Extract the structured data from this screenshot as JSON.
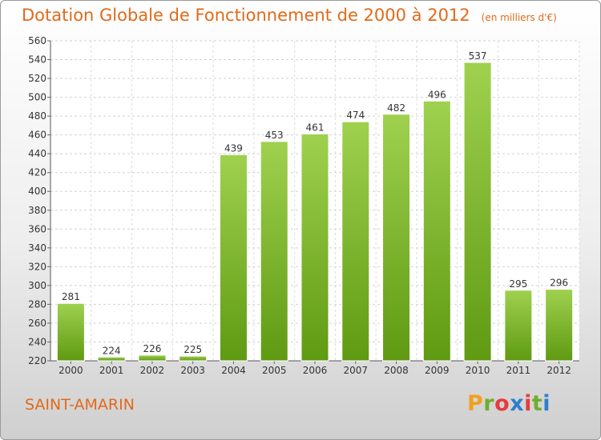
{
  "title": "Dotation Globale de Fonctionnement de 2000 à 2012",
  "unit_note": "(en milliers d'€)",
  "commune": "SAINT-AMARIN",
  "logo": {
    "letters": [
      "P",
      "r",
      "o",
      "x",
      "i",
      "t",
      "i"
    ],
    "colors": [
      "#f0a020",
      "#6fae2a",
      "#e53c3c",
      "#2d7fd0",
      "#e53c3c",
      "#6fae2a",
      "#2d7fd0"
    ]
  },
  "colors": {
    "bar_light": "#9fd14f",
    "bar_dark": "#5f9a12",
    "title": "#e06a1a"
  },
  "chart_data": {
    "type": "bar",
    "categories": [
      "2000",
      "2001",
      "2002",
      "2003",
      "2004",
      "2005",
      "2006",
      "2007",
      "2008",
      "2009",
      "2010",
      "2011",
      "2012"
    ],
    "values": [
      281,
      224,
      226,
      225,
      439,
      453,
      461,
      474,
      482,
      496,
      537,
      295,
      296
    ],
    "ylim": [
      220,
      560
    ],
    "yticks": [
      220,
      240,
      260,
      280,
      300,
      320,
      340,
      360,
      380,
      400,
      420,
      440,
      460,
      480,
      500,
      520,
      540,
      560
    ],
    "grid": true
  }
}
